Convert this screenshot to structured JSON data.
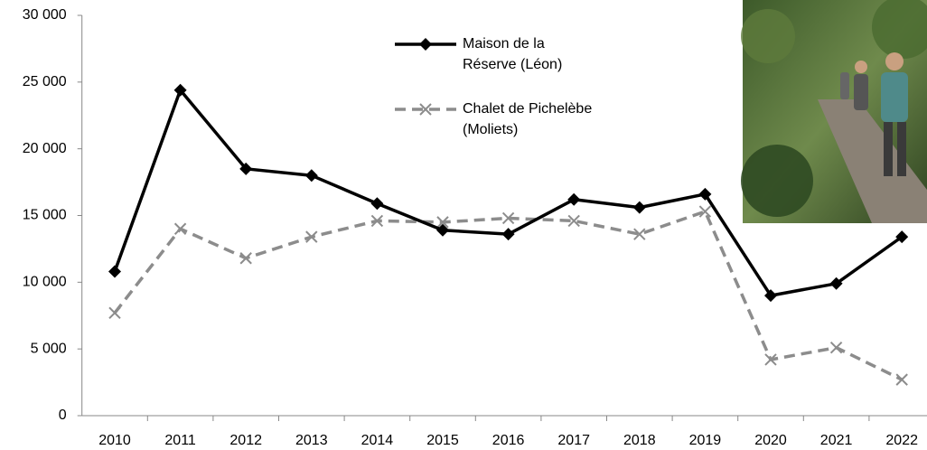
{
  "chart_data": {
    "type": "line",
    "categories": [
      "2010",
      "2011",
      "2012",
      "2013",
      "2014",
      "2015",
      "2016",
      "2017",
      "2018",
      "2019",
      "2020",
      "2021",
      "2022"
    ],
    "series": [
      {
        "name": "Maison de la Réserve (Léon)",
        "color": "#000000",
        "marker": "diamond",
        "dashed": false,
        "values": [
          10800,
          24400,
          18500,
          18000,
          15900,
          13900,
          13600,
          16200,
          15600,
          16600,
          9000,
          9900,
          13400
        ]
      },
      {
        "name": "Chalet de Pichelèbe (Moliets)",
        "color": "#8c8c8c",
        "marker": "x",
        "dashed": true,
        "values": [
          7700,
          14000,
          11800,
          13400,
          14600,
          14500,
          14800,
          14600,
          13600,
          15300,
          4200,
          5100,
          2700
        ]
      }
    ],
    "ylim": [
      0,
      30000
    ],
    "yticks": [
      0,
      {
        "value": 5000,
        "label": "5 000"
      },
      {
        "value": 10000,
        "label": "10 000"
      },
      {
        "value": 15000,
        "label": "15 000"
      },
      {
        "value": 20000,
        "label": "20 000"
      },
      {
        "value": 25000,
        "label": "25 000"
      },
      {
        "value": 30000,
        "label": "30 000"
      }
    ],
    "grid": false
  }
}
